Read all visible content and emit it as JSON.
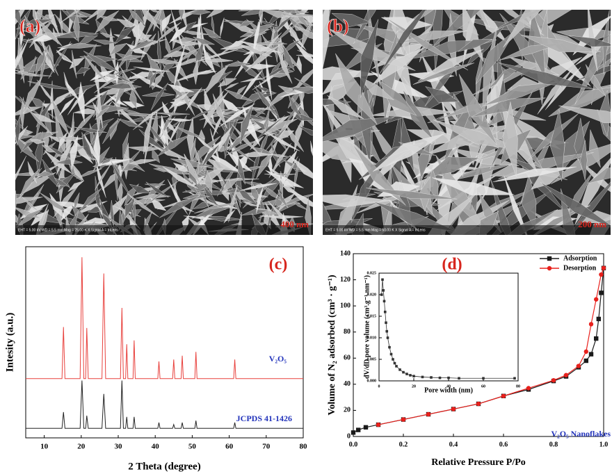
{
  "panels": [
    {
      "label": "(a)",
      "scale_bar": "400 nm",
      "info": "EHT = 5.00 kV   WD = 5.5 mm   Mag = 25.00 K X   Signal A = InLens"
    },
    {
      "label": "(b)",
      "scale_bar": "200 nm",
      "info": "EHT = 5.00 kV   WD = 5.5 mm   Mag = 50.00 K X   Signal A = InLens"
    }
  ],
  "chart_data": [
    {
      "type": "line",
      "panel_label": "(c)",
      "xlabel": "2 Theta (degree)",
      "ylabel": "Intesity (a.u.)",
      "xlim": [
        5,
        80
      ],
      "xticks": [
        10,
        20,
        30,
        40,
        50,
        60,
        70,
        80
      ],
      "ylim": [
        0,
        100
      ],
      "series": [
        {
          "name": "V₂O₅",
          "color": "#e8403c",
          "x": [
            5,
            14.8,
            15.2,
            15.6,
            19.7,
            20.2,
            20.7,
            21.2,
            21.5,
            21.9,
            25.6,
            26.1,
            26.6,
            30.6,
            31,
            31.4,
            32,
            32.3,
            32.6,
            34,
            34.3,
            34.6,
            40.7,
            41,
            41.3,
            44.7,
            45,
            45.3,
            47,
            47.3,
            47.6,
            50.7,
            51,
            51.3,
            61.2,
            61.5,
            61.8,
            80
          ],
          "values": [
            31,
            31,
            58,
            31,
            31,
            94.5,
            31,
            31,
            57.5,
            31,
            31,
            86,
            31,
            31,
            68,
            31,
            31,
            49,
            31,
            31,
            51,
            31,
            31,
            40,
            31,
            31,
            41,
            31,
            31,
            43,
            31,
            31,
            45,
            31,
            31,
            41,
            31,
            31
          ]
        },
        {
          "name": "JCPDS 41-1426",
          "color": "#222222",
          "x": [
            5,
            14.8,
            15.2,
            15.6,
            19.7,
            20.2,
            20.7,
            21.2,
            21.5,
            21.9,
            25.6,
            26.1,
            26.6,
            30.6,
            31,
            31.4,
            32,
            32.3,
            32.6,
            34,
            34.3,
            34.6,
            40.7,
            41,
            41.3,
            44.7,
            45,
            45.3,
            47,
            47.3,
            47.6,
            50.7,
            51,
            51.3,
            61.2,
            61.5,
            61.8,
            80
          ],
          "values": [
            5,
            5,
            13.5,
            5,
            5,
            30,
            5,
            5,
            11.6,
            5,
            5,
            23,
            5,
            5,
            30,
            5,
            5,
            11,
            5,
            5,
            11,
            5,
            5,
            8,
            5,
            5,
            7,
            5,
            5,
            8,
            5,
            5,
            9,
            5,
            5,
            8,
            5,
            5
          ]
        }
      ]
    },
    {
      "type": "line",
      "panel_label": "(d)",
      "xlabel": "Relative Pressure P/Po",
      "ylabel": "Volume of N₂ adsorbed (cm³ · g⁻¹)",
      "annotation": "V₂O₅ Nanoflakes",
      "xlim": [
        0,
        1
      ],
      "xticks": [
        {
          "value": 0,
          "label": "0.0"
        },
        0.2,
        0.4,
        0.6,
        0.8,
        {
          "value": 1,
          "label": "1.0"
        }
      ],
      "ylim": [
        0,
        140
      ],
      "yticks": [
        0,
        20,
        40,
        60,
        80,
        100,
        120,
        140
      ],
      "legend": "top-right",
      "series": [
        {
          "name": "Adsorption",
          "color": "#1a1a1a",
          "marker": "square",
          "x": [
            0,
            0.02,
            0.05,
            0.1,
            0.2,
            0.3,
            0.4,
            0.5,
            0.6,
            0.7,
            0.8,
            0.85,
            0.9,
            0.93,
            0.95,
            0.97,
            0.98,
            0.99,
            1
          ],
          "values": [
            3,
            5,
            7,
            9,
            13,
            17,
            21,
            25,
            31,
            36,
            42.5,
            46,
            53,
            58,
            63,
            75,
            90,
            110,
            129
          ]
        },
        {
          "name": "Desorption",
          "color": "#e8201c",
          "marker": "circle",
          "x": [
            1,
            0.99,
            0.97,
            0.95,
            0.93,
            0.9,
            0.85,
            0.8,
            0.7,
            0.6,
            0.5,
            0.4,
            0.3,
            0.2,
            0.1
          ],
          "values": [
            129,
            124,
            105,
            86,
            65,
            54,
            47,
            43,
            37,
            31,
            25,
            21,
            17,
            13,
            9
          ]
        }
      ]
    },
    {
      "type": "line",
      "xlabel": "Pore width (nm)",
      "ylabel": "dV/dD pore volume (cm³.g⁻¹.nm⁻¹)",
      "xlim": [
        0,
        80
      ],
      "xticks": [
        0,
        20,
        40,
        60,
        80
      ],
      "ylim": [
        0,
        0.025
      ],
      "yticks": [
        {
          "value": 0,
          "label": "0.000"
        },
        0.005,
        {
          "value": 0.01,
          "label": "0.010"
        },
        0.015,
        {
          "value": 0.02,
          "label": "0.020"
        },
        0.025
      ],
      "series": [
        {
          "color": "#333333",
          "marker": "square",
          "x": [
            1.5,
            2,
            2.5,
            3,
            3.5,
            4,
            4.5,
            5,
            6,
            7,
            8,
            9,
            10,
            12,
            14,
            16,
            18,
            20,
            25,
            30,
            35,
            40,
            46,
            60,
            78
          ],
          "values": [
            0.02,
            0.0235,
            0.021,
            0.0185,
            0.016,
            0.0135,
            0.0115,
            0.01,
            0.0078,
            0.0062,
            0.005,
            0.0041,
            0.0034,
            0.0026,
            0.002,
            0.0016,
            0.0013,
            0.0011,
            0.0009,
            0.0008,
            0.0007,
            0.0007,
            0.0006,
            0.0006,
            0.0006
          ]
        }
      ]
    }
  ]
}
